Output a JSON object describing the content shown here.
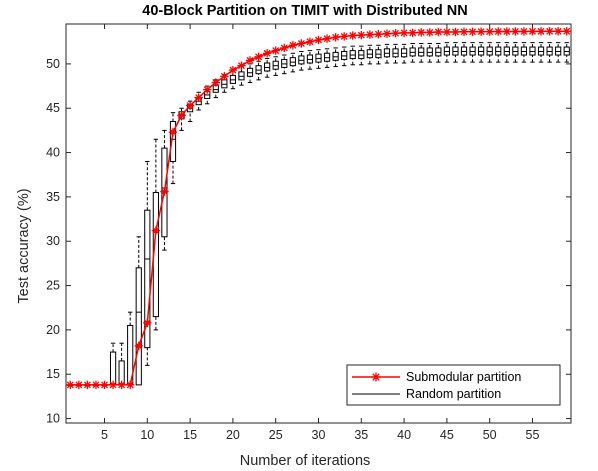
{
  "chart_data": {
    "type": "line",
    "title": "40-Block Partition on TIMIT with Distributed NN",
    "xlabel": "Number of iterations",
    "ylabel": "Test accuracy (%)",
    "xlim": [
      0.5,
      59.5
    ],
    "ylim": [
      9.5,
      54.5
    ],
    "xticks": [
      5,
      10,
      15,
      20,
      25,
      30,
      35,
      40,
      45,
      50,
      55
    ],
    "yticks": [
      10,
      15,
      20,
      25,
      30,
      35,
      40,
      45,
      50
    ],
    "legend_position": "bottom-right",
    "colors": {
      "submodular": "#ff0000",
      "random": "#000000",
      "axes": "#262626"
    },
    "series": [
      {
        "name": "Submodular partition",
        "marker": "asterisk",
        "x": [
          1,
          2,
          3,
          4,
          5,
          6,
          7,
          8,
          9,
          10,
          11,
          12,
          13,
          14,
          15,
          16,
          17,
          18,
          19,
          20,
          21,
          22,
          23,
          24,
          25,
          26,
          27,
          28,
          29,
          30,
          31,
          32,
          33,
          34,
          35,
          36,
          37,
          38,
          39,
          40,
          41,
          42,
          43,
          44,
          45,
          46,
          47,
          48,
          49,
          50,
          51,
          52,
          53,
          54,
          55,
          56,
          57,
          58,
          59
        ],
        "values": [
          13.8,
          13.8,
          13.8,
          13.8,
          13.8,
          13.8,
          13.8,
          13.8,
          18.2,
          20.8,
          31.2,
          35.6,
          42.3,
          44.2,
          45.3,
          46.2,
          47.1,
          47.9,
          48.6,
          49.3,
          49.8,
          50.4,
          50.8,
          51.2,
          51.5,
          51.8,
          52.1,
          52.3,
          52.5,
          52.7,
          52.85,
          53.0,
          53.1,
          53.2,
          53.25,
          53.3,
          53.35,
          53.4,
          53.45,
          53.5,
          53.5,
          53.55,
          53.55,
          53.6,
          53.6,
          53.6,
          53.62,
          53.62,
          53.64,
          53.64,
          53.65,
          53.65,
          53.66,
          53.66,
          53.67,
          53.67,
          53.68,
          53.68,
          53.68
        ]
      },
      {
        "name": "Random partition",
        "type": "boxplot",
        "x": [
          1,
          2,
          3,
          4,
          5,
          6,
          7,
          8,
          9,
          10,
          11,
          12,
          13,
          14,
          15,
          16,
          17,
          18,
          19,
          20,
          21,
          22,
          23,
          24,
          25,
          26,
          27,
          28,
          29,
          30,
          31,
          32,
          33,
          34,
          35,
          36,
          37,
          38,
          39,
          40,
          41,
          42,
          43,
          44,
          45,
          46,
          47,
          48,
          49,
          50,
          51,
          52,
          53,
          54,
          55,
          56,
          57,
          58,
          59
        ],
        "lower_whisker": [
          13.8,
          13.8,
          13.8,
          13.8,
          13.8,
          13.8,
          13.8,
          13.8,
          13.8,
          16.0,
          20.0,
          29.0,
          36.5,
          42.5,
          43.5,
          44.8,
          45.5,
          46.2,
          46.8,
          47.2,
          47.6,
          47.9,
          48.2,
          48.5,
          48.7,
          48.9,
          49.1,
          49.3,
          49.4,
          49.5,
          49.6,
          49.7,
          49.8,
          49.9,
          49.9,
          50.0,
          50.0,
          50.1,
          50.1,
          50.1,
          50.2,
          50.2,
          50.2,
          50.2,
          50.2,
          50.2,
          50.2,
          50.2,
          50.2,
          50.2,
          50.2,
          50.2,
          50.2,
          50.2,
          50.2,
          50.2,
          50.2,
          50.2,
          50.2
        ],
        "q1": [
          13.8,
          13.8,
          13.8,
          13.8,
          13.8,
          13.8,
          13.8,
          13.8,
          13.8,
          18.0,
          21.5,
          30.5,
          39.0,
          43.8,
          44.6,
          45.4,
          46.1,
          46.8,
          47.3,
          47.8,
          48.2,
          48.6,
          48.9,
          49.2,
          49.4,
          49.6,
          49.8,
          50.0,
          50.1,
          50.2,
          50.3,
          50.4,
          50.5,
          50.6,
          50.6,
          50.7,
          50.7,
          50.8,
          50.8,
          50.8,
          50.9,
          50.9,
          50.9,
          50.9,
          51.0,
          51.0,
          51.0,
          51.0,
          51.0,
          51.0,
          51.0,
          51.0,
          51.0,
          51.0,
          51.0,
          51.0,
          51.0,
          51.0,
          51.0
        ],
        "median": [
          13.8,
          13.8,
          13.8,
          13.8,
          13.8,
          13.8,
          13.8,
          13.8,
          22.0,
          28.0,
          31.0,
          36.0,
          41.5,
          44.2,
          45.0,
          45.8,
          46.5,
          47.1,
          47.7,
          48.2,
          48.6,
          49.0,
          49.3,
          49.6,
          49.8,
          50.0,
          50.2,
          50.4,
          50.5,
          50.6,
          50.7,
          50.8,
          50.9,
          51.0,
          51.0,
          51.1,
          51.1,
          51.2,
          51.2,
          51.2,
          51.3,
          51.3,
          51.3,
          51.3,
          51.4,
          51.4,
          51.4,
          51.4,
          51.4,
          51.4,
          51.4,
          51.4,
          51.4,
          51.4,
          51.4,
          51.4,
          51.4,
          51.4,
          51.4
        ],
        "q3": [
          13.8,
          13.8,
          13.8,
          13.8,
          13.8,
          17.5,
          16.5,
          20.5,
          27.0,
          33.5,
          35.5,
          40.5,
          43.5,
          44.6,
          45.4,
          46.2,
          46.9,
          47.6,
          48.2,
          48.7,
          49.1,
          49.5,
          49.8,
          50.1,
          50.3,
          50.5,
          50.7,
          50.9,
          51.0,
          51.1,
          51.2,
          51.3,
          51.4,
          51.5,
          51.5,
          51.6,
          51.6,
          51.7,
          51.7,
          51.7,
          51.8,
          51.8,
          51.8,
          51.8,
          51.9,
          51.9,
          51.9,
          51.9,
          51.9,
          51.9,
          51.9,
          51.9,
          51.9,
          51.9,
          51.9,
          51.9,
          51.9,
          51.9,
          51.9
        ],
        "upper_whisker": [
          13.8,
          13.8,
          13.8,
          13.8,
          13.8,
          18.5,
          18.5,
          22.0,
          30.5,
          39.0,
          41.5,
          42.5,
          44.5,
          45.0,
          45.8,
          46.8,
          47.5,
          48.2,
          48.8,
          49.3,
          49.7,
          50.0,
          50.3,
          50.6,
          50.8,
          51.0,
          51.2,
          51.4,
          51.5,
          51.6,
          51.7,
          51.8,
          51.9,
          52.0,
          52.0,
          52.1,
          52.1,
          52.2,
          52.2,
          52.2,
          52.3,
          52.3,
          52.3,
          52.3,
          52.4,
          52.4,
          52.4,
          52.4,
          52.4,
          52.4,
          52.4,
          52.4,
          52.4,
          52.4,
          52.4,
          52.4,
          52.4,
          52.4,
          52.4
        ]
      }
    ]
  }
}
